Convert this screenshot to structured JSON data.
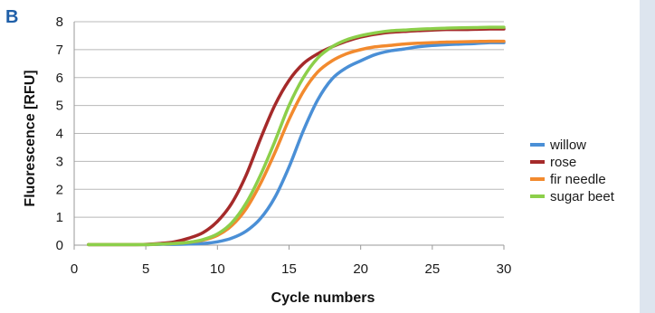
{
  "panel_label": "B",
  "chart_data": {
    "type": "line",
    "xlabel": "Cycle numbers",
    "ylabel": "Fluorescence [RFU]",
    "xlim": [
      0,
      30
    ],
    "ylim": [
      0,
      8
    ],
    "xticks": [
      0,
      5,
      10,
      15,
      20,
      25,
      30
    ],
    "yticks": [
      0,
      1,
      2,
      3,
      4,
      5,
      6,
      7,
      8
    ],
    "grid": "horizontal",
    "legend_position": "right",
    "x": [
      1,
      2,
      3,
      4,
      5,
      6,
      7,
      8,
      9,
      10,
      11,
      12,
      13,
      14,
      15,
      16,
      17,
      18,
      19,
      20,
      21,
      22,
      23,
      24,
      25,
      26,
      27,
      28,
      29,
      30
    ],
    "series": [
      {
        "name": "willow",
        "color": "#4a8fd6",
        "values": [
          0.02,
          0.02,
          0.02,
          0.02,
          0.02,
          0.03,
          0.03,
          0.04,
          0.06,
          0.12,
          0.25,
          0.5,
          0.95,
          1.7,
          2.8,
          4.1,
          5.2,
          5.95,
          6.35,
          6.6,
          6.82,
          6.95,
          7.02,
          7.1,
          7.15,
          7.18,
          7.2,
          7.22,
          7.25,
          7.25
        ]
      },
      {
        "name": "rose",
        "color": "#a52a2a",
        "values": [
          0.02,
          0.02,
          0.02,
          0.02,
          0.03,
          0.06,
          0.12,
          0.25,
          0.45,
          0.85,
          1.5,
          2.5,
          3.8,
          5.0,
          5.9,
          6.5,
          6.85,
          7.1,
          7.3,
          7.45,
          7.55,
          7.62,
          7.65,
          7.68,
          7.7,
          7.72,
          7.72,
          7.73,
          7.74,
          7.74
        ]
      },
      {
        "name": "fir needle",
        "color": "#f28a2e",
        "values": [
          0.02,
          0.02,
          0.02,
          0.02,
          0.02,
          0.04,
          0.06,
          0.1,
          0.18,
          0.35,
          0.7,
          1.3,
          2.2,
          3.3,
          4.5,
          5.5,
          6.2,
          6.6,
          6.85,
          7.0,
          7.1,
          7.15,
          7.2,
          7.23,
          7.25,
          7.27,
          7.28,
          7.29,
          7.3,
          7.3
        ]
      },
      {
        "name": "sugar beet",
        "color": "#8ccf4a",
        "values": [
          0.02,
          0.02,
          0.02,
          0.02,
          0.02,
          0.04,
          0.06,
          0.1,
          0.2,
          0.4,
          0.8,
          1.5,
          2.5,
          3.7,
          5.0,
          6.0,
          6.7,
          7.1,
          7.35,
          7.5,
          7.6,
          7.67,
          7.7,
          7.73,
          7.75,
          7.77,
          7.78,
          7.79,
          7.8,
          7.8
        ]
      }
    ]
  }
}
